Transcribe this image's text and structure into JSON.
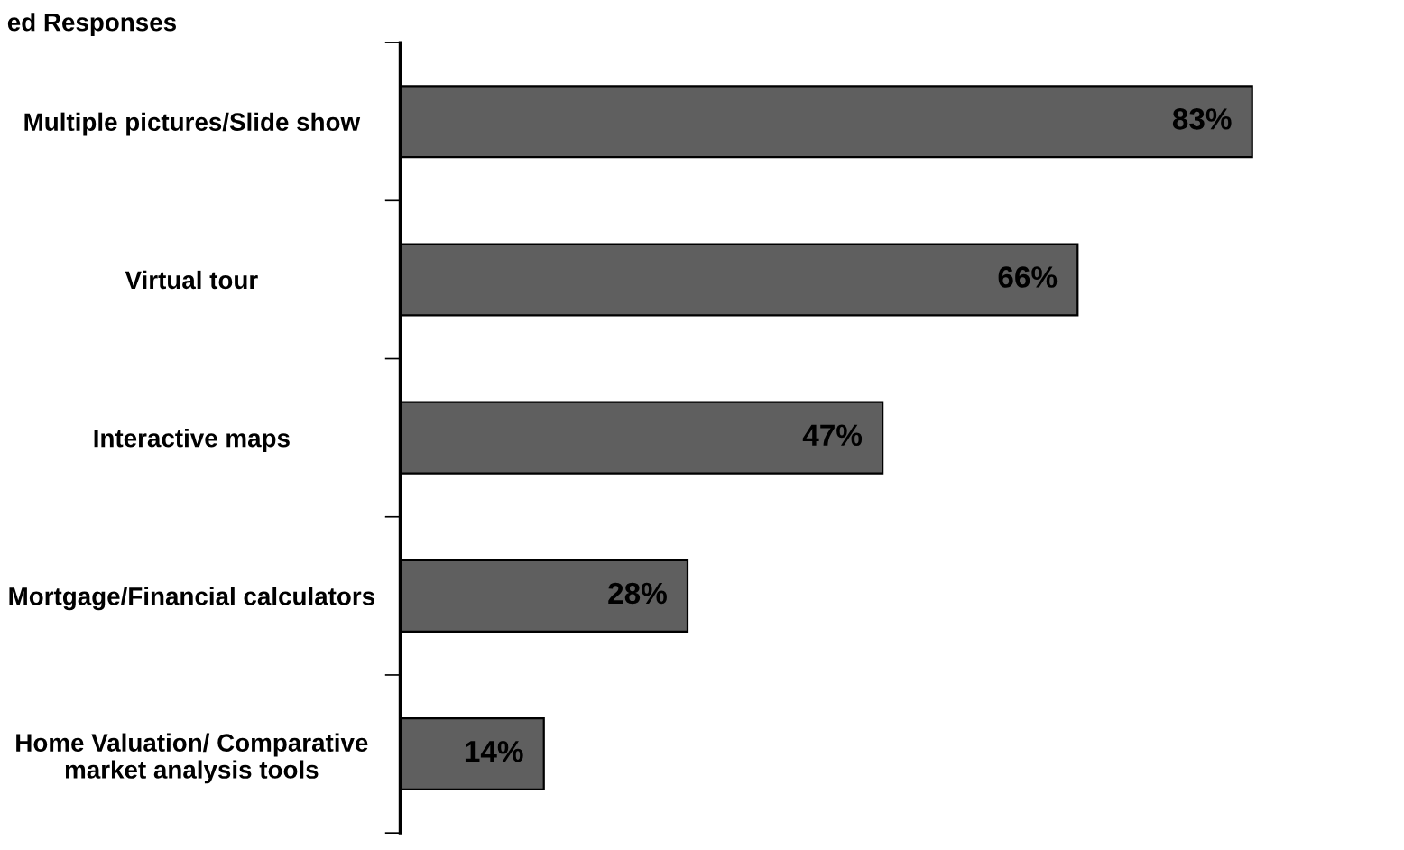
{
  "chart_data": {
    "type": "bar",
    "orientation": "horizontal",
    "title": "ed Responses",
    "categories": [
      "Multiple pictures/Slide show",
      "Virtual tour",
      "Interactive maps",
      "Mortgage/Financial calculators",
      "Home Valuation/ Comparative market analysis tools"
    ],
    "values": [
      83,
      66,
      47,
      28,
      14
    ],
    "value_labels": [
      "83%",
      "66%",
      "47%",
      "28%",
      "14%"
    ],
    "color": "#5f5f5f",
    "grid": false,
    "legend": false
  }
}
